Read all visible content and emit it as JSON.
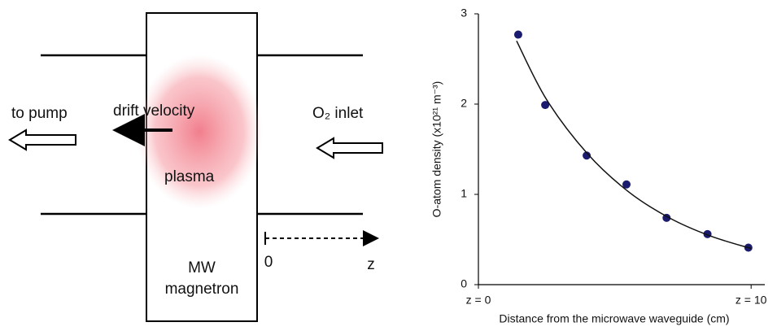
{
  "diagram": {
    "labels": {
      "to_pump": "to pump",
      "drift": "drift velocity",
      "inlet": "O₂ inlet",
      "plasma": "plasma",
      "mw": "MW",
      "magnetron": "magnetron",
      "origin": "0",
      "z": "z"
    }
  },
  "chart_data": {
    "type": "scatter",
    "x_label": "Distance from the microwave waveguide (cm)",
    "y_label": "O-atom density (x10²¹ m⁻³)",
    "xlim": [
      0,
      10.8
    ],
    "ylim": [
      0,
      3
    ],
    "xticks": [
      {
        "value": 0,
        "label": "z = 0"
      },
      {
        "value": 10,
        "label": "z = 10"
      }
    ],
    "yticks": [
      0,
      1,
      2,
      3
    ],
    "series": [
      {
        "mode": "markers",
        "color": "#1a1a6e",
        "x": [
          1.46,
          2.45,
          3.97,
          5.43,
          6.9,
          8.4,
          9.9
        ],
        "values": [
          2.77,
          1.99,
          1.43,
          1.11,
          0.74,
          0.56,
          0.41
        ]
      },
      {
        "mode": "line",
        "color": "#111111",
        "x": [
          1.4,
          2.5,
          4,
          5.5,
          7,
          8.5,
          10
        ],
        "values": [
          2.7,
          2.05,
          1.45,
          1.03,
          0.74,
          0.54,
          0.4
        ]
      }
    ]
  }
}
